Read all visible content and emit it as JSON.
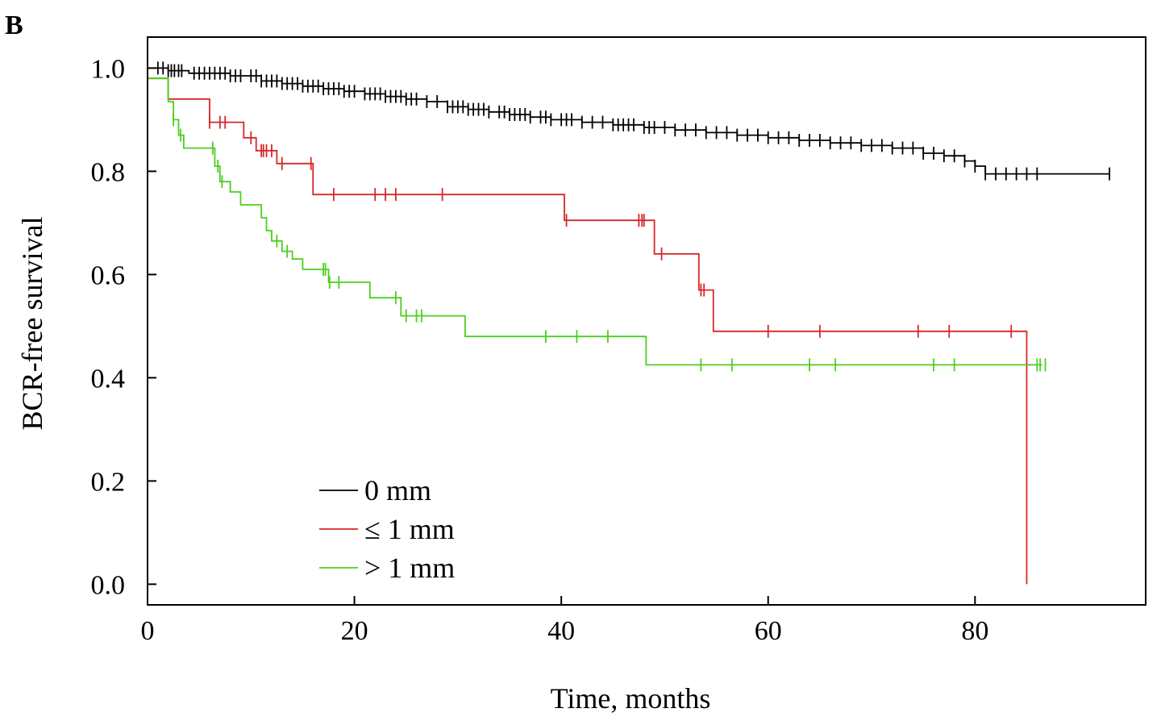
{
  "chart_data": {
    "type": "line",
    "subtype": "kaplan-meier step",
    "panel_label": "B",
    "title": "",
    "xlabel": "Time, months",
    "ylabel": "BCR-free survival",
    "xlim": [
      0,
      96.5
    ],
    "ylim": [
      -0.04,
      1.06
    ],
    "x_ticks": [
      0,
      20,
      40,
      60,
      80
    ],
    "y_ticks": [
      0.0,
      0.2,
      0.4,
      0.6,
      0.8,
      1.0
    ],
    "x_tick_labels": [
      "0",
      "20",
      "40",
      "60",
      "80"
    ],
    "y_tick_labels": [
      "0.0",
      "0.2",
      "0.4",
      "0.6",
      "0.8",
      "1.0"
    ],
    "grid": false,
    "legend": {
      "placement": "bottom-left"
    },
    "series": [
      {
        "name": "0 mm",
        "color": "#000000",
        "steps": [
          [
            0,
            1.0
          ],
          [
            2,
            0.995
          ],
          [
            4,
            0.99
          ],
          [
            8,
            0.985
          ],
          [
            11,
            0.975
          ],
          [
            13,
            0.97
          ],
          [
            15,
            0.965
          ],
          [
            17,
            0.96
          ],
          [
            19,
            0.955
          ],
          [
            21,
            0.95
          ],
          [
            23,
            0.945
          ],
          [
            25,
            0.94
          ],
          [
            27,
            0.935
          ],
          [
            29,
            0.925
          ],
          [
            31,
            0.92
          ],
          [
            33,
            0.915
          ],
          [
            35,
            0.91
          ],
          [
            37,
            0.905
          ],
          [
            39,
            0.9
          ],
          [
            42,
            0.895
          ],
          [
            45,
            0.89
          ],
          [
            48,
            0.885
          ],
          [
            51,
            0.88
          ],
          [
            54,
            0.875
          ],
          [
            57,
            0.87
          ],
          [
            60,
            0.865
          ],
          [
            63,
            0.86
          ],
          [
            66,
            0.855
          ],
          [
            69,
            0.85
          ],
          [
            72,
            0.845
          ],
          [
            75,
            0.835
          ],
          [
            77,
            0.83
          ],
          [
            79,
            0.82
          ],
          [
            80,
            0.81
          ],
          [
            81,
            0.795
          ],
          [
            93,
            0.795
          ]
        ],
        "censors": [
          1,
          1.5,
          2,
          2.3,
          2.6,
          3,
          3.3,
          4.5,
          5,
          5.5,
          6,
          6.5,
          7,
          7.5,
          8,
          8.5,
          9,
          10,
          10.5,
          11,
          11.5,
          12,
          12.5,
          13,
          13.5,
          14,
          14.5,
          15,
          15.5,
          16,
          16.5,
          17,
          17.5,
          18,
          18.5,
          19,
          19.5,
          20,
          21,
          21.5,
          22,
          22.5,
          23,
          23.5,
          24,
          24.5,
          25,
          25.5,
          26,
          27,
          28,
          29,
          29.5,
          30,
          30.5,
          31,
          31.5,
          32,
          32.5,
          33,
          34,
          34.5,
          35,
          35.5,
          36,
          36.5,
          37,
          38,
          38.5,
          39,
          40,
          40.5,
          41,
          42,
          43,
          44,
          45,
          45.5,
          46,
          46.5,
          47,
          48,
          48.5,
          49,
          50,
          51,
          52,
          53,
          54,
          55,
          56,
          57,
          58,
          59,
          60,
          61,
          62,
          63,
          64,
          65,
          66,
          67,
          68,
          69,
          70,
          71,
          72,
          73,
          74,
          75,
          76,
          77,
          78,
          79,
          80,
          81,
          82,
          83,
          84,
          85,
          86,
          93
        ]
      },
      {
        "name": "≤ 1 mm",
        "color": "#d62728",
        "steps": [
          [
            0,
            0.98
          ],
          [
            1.8,
            0.98
          ],
          [
            2,
            0.94
          ],
          [
            5.5,
            0.94
          ],
          [
            6,
            0.895
          ],
          [
            9,
            0.895
          ],
          [
            9.3,
            0.865
          ],
          [
            10.5,
            0.84
          ],
          [
            12.5,
            0.815
          ],
          [
            15.7,
            0.815
          ],
          [
            16,
            0.755
          ],
          [
            40,
            0.755
          ],
          [
            40.3,
            0.705
          ],
          [
            48.8,
            0.705
          ],
          [
            49,
            0.64
          ],
          [
            53,
            0.64
          ],
          [
            53.3,
            0.57
          ],
          [
            54.5,
            0.57
          ],
          [
            54.7,
            0.49
          ],
          [
            85,
            0.49
          ],
          [
            85,
            0.0
          ]
        ],
        "censors": [
          6,
          7,
          7.5,
          10,
          11,
          11.2,
          11.5,
          12,
          13,
          15.8,
          18,
          22,
          23,
          24,
          28.5,
          40.5,
          47.5,
          47.8,
          48,
          49.7,
          53.5,
          53.8,
          60,
          65,
          74.5,
          77.5,
          83.5
        ]
      },
      {
        "name": "> 1 mm",
        "color": "#4ccf1e",
        "steps": [
          [
            0,
            0.98
          ],
          [
            1.5,
            0.98
          ],
          [
            2,
            0.935
          ],
          [
            2.5,
            0.9
          ],
          [
            3,
            0.87
          ],
          [
            3.5,
            0.845
          ],
          [
            6,
            0.845
          ],
          [
            6.5,
            0.81
          ],
          [
            7,
            0.78
          ],
          [
            8,
            0.76
          ],
          [
            9,
            0.735
          ],
          [
            10.5,
            0.735
          ],
          [
            11,
            0.71
          ],
          [
            11.5,
            0.685
          ],
          [
            12,
            0.665
          ],
          [
            13,
            0.645
          ],
          [
            14,
            0.63
          ],
          [
            15,
            0.61
          ],
          [
            17,
            0.61
          ],
          [
            17.5,
            0.585
          ],
          [
            21,
            0.585
          ],
          [
            21.5,
            0.555
          ],
          [
            24.3,
            0.555
          ],
          [
            24.5,
            0.52
          ],
          [
            30.5,
            0.52
          ],
          [
            30.7,
            0.48
          ],
          [
            48,
            0.48
          ],
          [
            48.2,
            0.425
          ],
          [
            86.5,
            0.425
          ]
        ],
        "censors": [
          2.5,
          3.2,
          6.3,
          6.8,
          7.2,
          12.5,
          13.5,
          17,
          17.2,
          17.6,
          18.5,
          24,
          25,
          26,
          26.5,
          38.5,
          41.5,
          44.5,
          53.5,
          56.5,
          64,
          66.5,
          76,
          78,
          86,
          86.3,
          86.8
        ]
      }
    ]
  }
}
